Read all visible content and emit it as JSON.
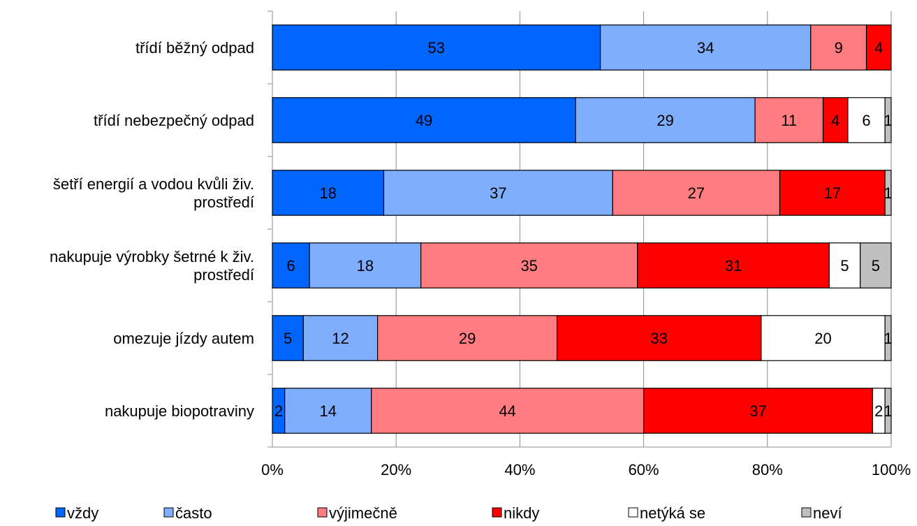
{
  "chart_data": {
    "type": "bar",
    "orientation": "horizontal",
    "stacked": "percent",
    "title": "",
    "xlabel": "",
    "ylabel": "",
    "xlim": [
      0,
      100
    ],
    "x_ticks": [
      "0%",
      "20%",
      "40%",
      "60%",
      "80%",
      "100%"
    ],
    "grid": true,
    "legend_position": "bottom",
    "categories": [
      [
        "třídí běžný odpad"
      ],
      [
        "třídí nebezpečný odpad"
      ],
      [
        "šetří energií a vodou kvůli živ.",
        "prostředí"
      ],
      [
        "nakupuje výrobky šetrné k živ.",
        "prostředí"
      ],
      [
        "omezuje jízdy autem"
      ],
      [
        "nakupuje biopotraviny"
      ]
    ],
    "series": [
      {
        "name": "vždy",
        "color": "#0066ff",
        "label_color": "#000000",
        "values": [
          53,
          49,
          18,
          6,
          5,
          2
        ]
      },
      {
        "name": "často",
        "color": "#7faeff",
        "label_color": "#000000",
        "values": [
          34,
          29,
          37,
          18,
          12,
          14
        ]
      },
      {
        "name": "výjimečně",
        "color": "#ff7c80",
        "label_color": "#000000",
        "values": [
          9,
          11,
          27,
          35,
          29,
          44
        ]
      },
      {
        "name": "nikdy",
        "color": "#ff0000",
        "label_color": "#000000",
        "values": [
          4,
          4,
          17,
          31,
          33,
          37
        ]
      },
      {
        "name": "netýká se",
        "color": "#ffffff",
        "label_color": "#000000",
        "values": [
          null,
          6,
          null,
          5,
          20,
          2
        ]
      },
      {
        "name": "neví",
        "color": "#c0c0c0",
        "label_color": "#000000",
        "values": [
          null,
          1,
          1,
          5,
          1,
          1
        ]
      }
    ]
  }
}
